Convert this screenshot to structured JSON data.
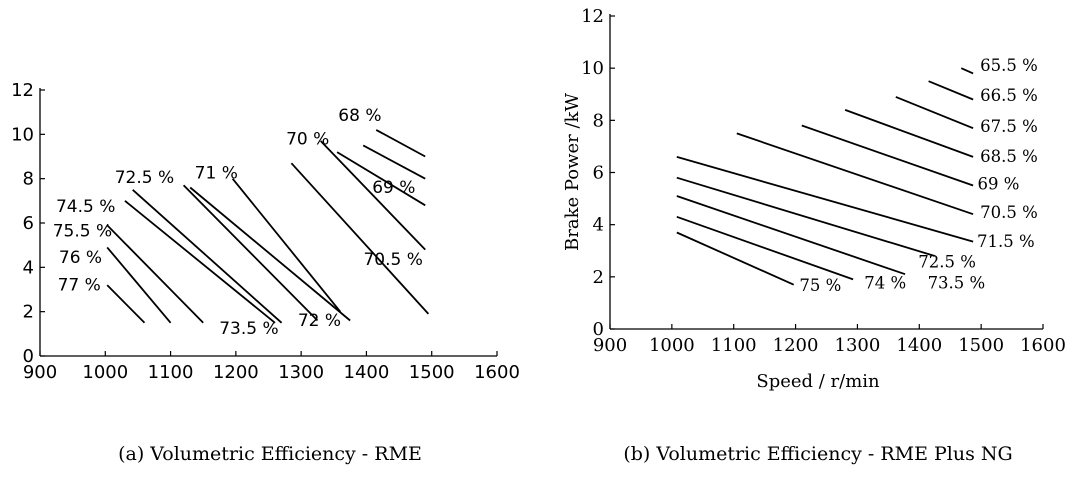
{
  "chart_data": [
    {
      "type": "line",
      "caption": "(a) Volumetric Efficiency - RME",
      "xlabel": "",
      "ylabel": "",
      "xlim": [
        900,
        1600
      ],
      "ylim": [
        0,
        12
      ],
      "xticks": [
        "900",
        "1000",
        "1100",
        "1200",
        "1300",
        "1400",
        "1500",
        "1600"
      ],
      "yticks": [
        "0",
        "2",
        "4",
        "6",
        "8",
        "10",
        "12"
      ],
      "grid": false,
      "series": [
        {
          "name": "77 %",
          "x": [
            1003,
            1060
          ],
          "y": [
            3.2,
            1.5
          ]
        },
        {
          "name": "76 %",
          "x": [
            1003,
            1100
          ],
          "y": [
            4.9,
            1.5
          ]
        },
        {
          "name": "75.5 %",
          "x": [
            1003,
            1150
          ],
          "y": [
            5.9,
            1.5
          ]
        },
        {
          "name": "74.5 %",
          "x": [
            1030,
            1260
          ],
          "y": [
            7.0,
            1.5
          ]
        },
        {
          "name": "72.5 %",
          "x": [
            1042,
            1270
          ],
          "y": [
            7.5,
            1.5
          ]
        },
        {
          "name": "73.5 %",
          "x": [
            1120,
            1325
          ],
          "y": [
            7.7,
            1.6
          ]
        },
        {
          "name": "71 %",
          "x": [
            1130,
            1375
          ],
          "y": [
            7.6,
            1.6
          ]
        },
        {
          "name": "72 %",
          "x": [
            1195,
            1360
          ],
          "y": [
            8.0,
            2.0
          ]
        },
        {
          "name": "70.5 %",
          "x": [
            1285,
            1495
          ],
          "y": [
            8.7,
            1.9
          ]
        },
        {
          "name": "70 %",
          "x": [
            1330,
            1490
          ],
          "y": [
            9.7,
            4.8
          ]
        },
        {
          "name": "69 %",
          "x": [
            1355,
            1490
          ],
          "y": [
            9.2,
            6.8
          ]
        },
        {
          "name": "68 %",
          "x": [
            1395,
            1490
          ],
          "y": [
            9.5,
            8.0
          ]
        },
        {
          "name": "",
          "x": [
            1415,
            1490
          ],
          "y": [
            10.2,
            9.0
          ]
        }
      ],
      "annotations": [
        {
          "text": "77 %",
          "x": 960,
          "y": 2.95
        },
        {
          "text": "76 %",
          "x": 962,
          "y": 4.2
        },
        {
          "text": "75.5 %",
          "x": 965,
          "y": 5.4
        },
        {
          "text": "74.5 %",
          "x": 970,
          "y": 6.5
        },
        {
          "text": "72.5 %",
          "x": 1060,
          "y": 7.8
        },
        {
          "text": "73.5 %",
          "x": 1220,
          "y": 1.0
        },
        {
          "text": "71 %",
          "x": 1170,
          "y": 8.0
        },
        {
          "text": "72 %",
          "x": 1328,
          "y": 1.35
        },
        {
          "text": "70.5 %",
          "x": 1441,
          "y": 4.1
        },
        {
          "text": "70 %",
          "x": 1310,
          "y": 9.55
        },
        {
          "text": "69 %",
          "x": 1442,
          "y": 7.35
        },
        {
          "text": "68 %",
          "x": 1390,
          "y": 10.6
        }
      ]
    },
    {
      "type": "line",
      "caption": "(b) Volumetric Efficiency - RME Plus NG",
      "xlabel": "Speed / r/min",
      "ylabel": "Brake Power /kW",
      "xlim": [
        900,
        1600
      ],
      "ylim": [
        0,
        12
      ],
      "xticks": [
        "900",
        "1000",
        "1100",
        "1200",
        "1300",
        "1400",
        "1500",
        "1600"
      ],
      "yticks": [
        "0",
        "2",
        "4",
        "6",
        "8",
        "10",
        "12"
      ],
      "grid": false,
      "series": [
        {
          "name": "75 %",
          "x": [
            1008,
            1197
          ],
          "y": [
            3.7,
            1.7
          ]
        },
        {
          "name": "74 %",
          "x": [
            1008,
            1293
          ],
          "y": [
            4.3,
            1.9
          ]
        },
        {
          "name": "73.5 %",
          "x": [
            1008,
            1377
          ],
          "y": [
            5.1,
            2.1
          ]
        },
        {
          "name": "72.5 %",
          "x": [
            1008,
            1425
          ],
          "y": [
            5.8,
            2.8
          ]
        },
        {
          "name": "71.5 %",
          "x": [
            1008,
            1487
          ],
          "y": [
            6.6,
            3.35
          ]
        },
        {
          "name": "70.5 %",
          "x": [
            1105,
            1487
          ],
          "y": [
            7.5,
            4.4
          ]
        },
        {
          "name": "69 %",
          "x": [
            1210,
            1487
          ],
          "y": [
            7.8,
            5.5
          ]
        },
        {
          "name": "68.5 %",
          "x": [
            1280,
            1487
          ],
          "y": [
            8.4,
            6.6
          ]
        },
        {
          "name": "67.5 %",
          "x": [
            1362,
            1487
          ],
          "y": [
            8.9,
            7.7
          ]
        },
        {
          "name": "66.5 %",
          "x": [
            1415,
            1487
          ],
          "y": [
            9.5,
            8.8
          ]
        },
        {
          "name": "65.5 %",
          "x": [
            1468,
            1487
          ],
          "y": [
            10.0,
            9.8
          ]
        }
      ],
      "annotations": [
        {
          "text": "75 %",
          "x": 1240,
          "y": 1.45
        },
        {
          "text": "74 %",
          "x": 1345,
          "y": 1.55
        },
        {
          "text": "73.5 %",
          "x": 1460,
          "y": 1.55
        },
        {
          "text": "72.5 %",
          "x": 1445,
          "y": 2.35
        },
        {
          "text": "71.5 %",
          "x": 1540,
          "y": 3.15
        },
        {
          "text": "70.5 %",
          "x": 1545,
          "y": 4.25
        },
        {
          "text": "69 %",
          "x": 1528,
          "y": 5.35
        },
        {
          "text": "68.5 %",
          "x": 1545,
          "y": 6.4
        },
        {
          "text": "67.5 %",
          "x": 1545,
          "y": 7.55
        },
        {
          "text": "66.5 %",
          "x": 1545,
          "y": 8.75
        },
        {
          "text": "65.5 %",
          "x": 1545,
          "y": 9.9
        }
      ]
    }
  ]
}
